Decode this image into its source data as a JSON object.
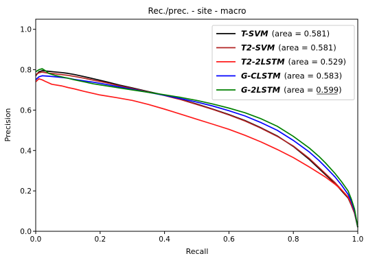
{
  "chart_data": {
    "type": "line",
    "title": "Rec./prec. - site - macro",
    "xlabel": "Recall",
    "ylabel": "Precision",
    "xlim": [
      0.0,
      1.0
    ],
    "ylim": [
      0.0,
      1.05
    ],
    "x_ticks": [
      "0.0",
      "0.2",
      "0.4",
      "0.6",
      "0.8",
      "1.0"
    ],
    "y_ticks": [
      "0.0",
      "0.2",
      "0.4",
      "0.6",
      "0.8",
      "1.0"
    ],
    "grid": false,
    "legend_position": "top-right",
    "series": [
      {
        "name": "T-SVM",
        "area": "(area = 0.581)",
        "color": "#000000",
        "underline": false,
        "x": [
          0.0,
          0.01,
          0.02,
          0.04,
          0.06,
          0.08,
          0.1,
          0.12,
          0.15,
          0.18,
          0.22,
          0.26,
          0.3,
          0.35,
          0.4,
          0.45,
          0.5,
          0.55,
          0.6,
          0.65,
          0.7,
          0.75,
          0.8,
          0.85,
          0.88,
          0.9,
          0.93,
          0.95,
          0.97,
          0.98,
          0.99,
          1.0
        ],
        "y": [
          0.77,
          0.79,
          0.795,
          0.792,
          0.789,
          0.786,
          0.782,
          0.776,
          0.766,
          0.755,
          0.74,
          0.724,
          0.71,
          0.692,
          0.674,
          0.653,
          0.63,
          0.605,
          0.578,
          0.548,
          0.512,
          0.472,
          0.42,
          0.355,
          0.31,
          0.28,
          0.236,
          0.2,
          0.165,
          0.13,
          0.09,
          0.02
        ]
      },
      {
        "name": "T2-SVM",
        "area": "(area = 0.581)",
        "color": "#b22222",
        "underline": false,
        "x": [
          0.0,
          0.01,
          0.02,
          0.04,
          0.06,
          0.08,
          0.1,
          0.12,
          0.15,
          0.18,
          0.22,
          0.26,
          0.3,
          0.35,
          0.4,
          0.45,
          0.5,
          0.55,
          0.6,
          0.65,
          0.7,
          0.75,
          0.8,
          0.85,
          0.88,
          0.9,
          0.93,
          0.95,
          0.97,
          0.98,
          0.99,
          1.0
        ],
        "y": [
          0.775,
          0.785,
          0.788,
          0.783,
          0.78,
          0.776,
          0.772,
          0.767,
          0.758,
          0.748,
          0.735,
          0.72,
          0.707,
          0.69,
          0.672,
          0.652,
          0.628,
          0.603,
          0.576,
          0.546,
          0.51,
          0.47,
          0.422,
          0.36,
          0.315,
          0.285,
          0.24,
          0.205,
          0.168,
          0.132,
          0.09,
          0.02
        ]
      },
      {
        "name": "T2-2LSTM",
        "area": "(area = 0.529)",
        "color": "#ff1a1a",
        "underline": false,
        "x": [
          0.0,
          0.01,
          0.02,
          0.03,
          0.05,
          0.08,
          0.1,
          0.12,
          0.15,
          0.2,
          0.25,
          0.3,
          0.35,
          0.4,
          0.45,
          0.5,
          0.55,
          0.6,
          0.65,
          0.7,
          0.75,
          0.8,
          0.85,
          0.9,
          0.93,
          0.95,
          0.97,
          0.98,
          0.99,
          1.0
        ],
        "y": [
          0.74,
          0.755,
          0.75,
          0.742,
          0.728,
          0.72,
          0.712,
          0.705,
          0.693,
          0.675,
          0.662,
          0.648,
          0.628,
          0.605,
          0.58,
          0.555,
          0.53,
          0.505,
          0.475,
          0.442,
          0.405,
          0.365,
          0.318,
          0.268,
          0.232,
          0.205,
          0.17,
          0.14,
          0.095,
          0.02
        ]
      },
      {
        "name": "G-CLSTM",
        "area": "(area = 0.583)",
        "color": "#0000ff",
        "underline": false,
        "x": [
          0.0,
          0.01,
          0.02,
          0.04,
          0.06,
          0.08,
          0.1,
          0.12,
          0.15,
          0.18,
          0.22,
          0.26,
          0.3,
          0.35,
          0.4,
          0.45,
          0.5,
          0.55,
          0.6,
          0.65,
          0.7,
          0.75,
          0.8,
          0.85,
          0.88,
          0.9,
          0.93,
          0.95,
          0.97,
          0.98,
          0.99,
          1.0
        ],
        "y": [
          0.75,
          0.765,
          0.77,
          0.768,
          0.765,
          0.762,
          0.758,
          0.752,
          0.745,
          0.738,
          0.727,
          0.715,
          0.703,
          0.688,
          0.673,
          0.657,
          0.64,
          0.62,
          0.597,
          0.571,
          0.538,
          0.5,
          0.45,
          0.392,
          0.35,
          0.318,
          0.268,
          0.228,
          0.183,
          0.148,
          0.1,
          0.02
        ]
      },
      {
        "name": "G-2LSTM",
        "area": "(area = 0.599)",
        "color": "#008000",
        "underline": true,
        "x": [
          0.0,
          0.01,
          0.02,
          0.03,
          0.04,
          0.06,
          0.08,
          0.1,
          0.12,
          0.15,
          0.18,
          0.22,
          0.26,
          0.3,
          0.35,
          0.4,
          0.45,
          0.5,
          0.55,
          0.6,
          0.65,
          0.7,
          0.75,
          0.8,
          0.85,
          0.88,
          0.9,
          0.93,
          0.95,
          0.97,
          0.98,
          0.99,
          1.0
        ],
        "y": [
          0.79,
          0.8,
          0.805,
          0.795,
          0.782,
          0.772,
          0.765,
          0.758,
          0.75,
          0.74,
          0.73,
          0.72,
          0.71,
          0.7,
          0.688,
          0.676,
          0.663,
          0.648,
          0.63,
          0.61,
          0.587,
          0.557,
          0.52,
          0.47,
          0.412,
          0.37,
          0.338,
          0.285,
          0.245,
          0.2,
          0.16,
          0.11,
          0.02
        ]
      }
    ]
  }
}
